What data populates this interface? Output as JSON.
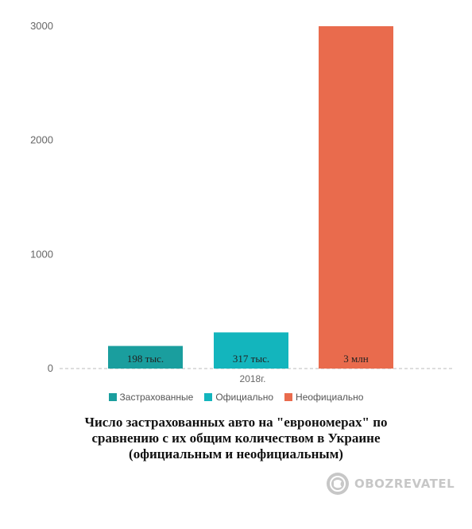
{
  "chart_data": {
    "type": "bar",
    "categories": [
      "2018г."
    ],
    "series": [
      {
        "name": "Застрахованные",
        "values": [
          198
        ],
        "data_label": "198 тыс.",
        "color": "#1a9e9e"
      },
      {
        "name": "Официально",
        "values": [
          317
        ],
        "data_label": "317 тыс.",
        "color": "#13b5bd"
      },
      {
        "name": "Неофициально",
        "values": [
          3000
        ],
        "data_label": "3 млн",
        "color": "#e96b4d"
      }
    ],
    "y_ticks": [
      "0",
      "1000",
      "2000",
      "3000"
    ],
    "ylim": [
      0,
      3000
    ],
    "grid": false,
    "legend_position": "bottom"
  },
  "caption": {
    "line1": "Число застрахованных авто на \"еврономерах\" по",
    "line2": "сравнению с их общим количеством в Украине",
    "line3": "(официальным и неофициальным)"
  },
  "watermark": {
    "text": "OBOZREVATEL",
    "icon": "globe-logo-icon"
  }
}
